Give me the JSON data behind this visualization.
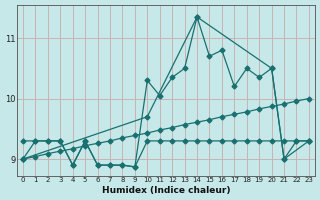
{
  "xlabel": "Humidex (Indice chaleur)",
  "bg_color": "#c6e8e8",
  "grid_color": "#c8b4b4",
  "line_color": "#1a7070",
  "xlim": [
    -0.5,
    23.5
  ],
  "ylim": [
    8.72,
    11.55
  ],
  "yticks": [
    9,
    10,
    11
  ],
  "xticks": [
    0,
    1,
    2,
    3,
    4,
    5,
    6,
    7,
    8,
    9,
    10,
    11,
    12,
    13,
    14,
    15,
    16,
    17,
    18,
    19,
    20,
    21,
    22,
    23
  ],
  "line1_x": [
    0,
    1,
    2,
    3,
    4,
    5,
    6,
    7,
    8,
    9,
    10,
    11,
    12,
    13,
    14,
    15,
    16,
    17,
    18,
    19,
    20,
    21,
    22,
    23
  ],
  "line1_y": [
    9.3,
    9.3,
    9.3,
    9.3,
    8.9,
    9.3,
    8.9,
    8.9,
    8.9,
    8.87,
    9.3,
    9.3,
    9.3,
    9.3,
    9.3,
    9.3,
    9.3,
    9.3,
    9.3,
    9.3,
    9.3,
    9.3,
    9.3,
    9.3
  ],
  "line2_x": [
    0,
    1,
    2,
    3,
    4,
    5,
    6,
    7,
    8,
    9,
    10,
    11,
    12,
    13,
    14,
    15,
    16,
    17,
    18,
    19,
    20,
    21,
    22,
    23
  ],
  "line2_y": [
    9.0,
    9.04,
    9.09,
    9.13,
    9.17,
    9.22,
    9.26,
    9.3,
    9.35,
    9.39,
    9.43,
    9.48,
    9.52,
    9.57,
    9.61,
    9.65,
    9.7,
    9.74,
    9.78,
    9.83,
    9.87,
    9.91,
    9.96,
    10.0
  ],
  "line3_x": [
    0,
    1,
    2,
    3,
    4,
    5,
    6,
    7,
    8,
    9,
    10,
    11,
    12,
    13,
    14,
    15,
    16,
    17,
    18,
    19,
    20,
    21,
    22,
    23
  ],
  "line3_y": [
    9.0,
    9.3,
    9.3,
    9.3,
    8.9,
    9.3,
    8.9,
    8.9,
    8.9,
    8.87,
    10.3,
    10.05,
    10.35,
    10.5,
    11.35,
    10.7,
    10.8,
    10.2,
    10.5,
    10.35,
    10.5,
    9.0,
    9.3,
    9.3
  ],
  "line4_x": [
    0,
    10,
    14,
    20,
    21,
    23
  ],
  "line4_y": [
    9.0,
    9.7,
    11.35,
    10.5,
    9.0,
    9.3
  ],
  "markersize": 2.5,
  "linewidth": 0.9
}
